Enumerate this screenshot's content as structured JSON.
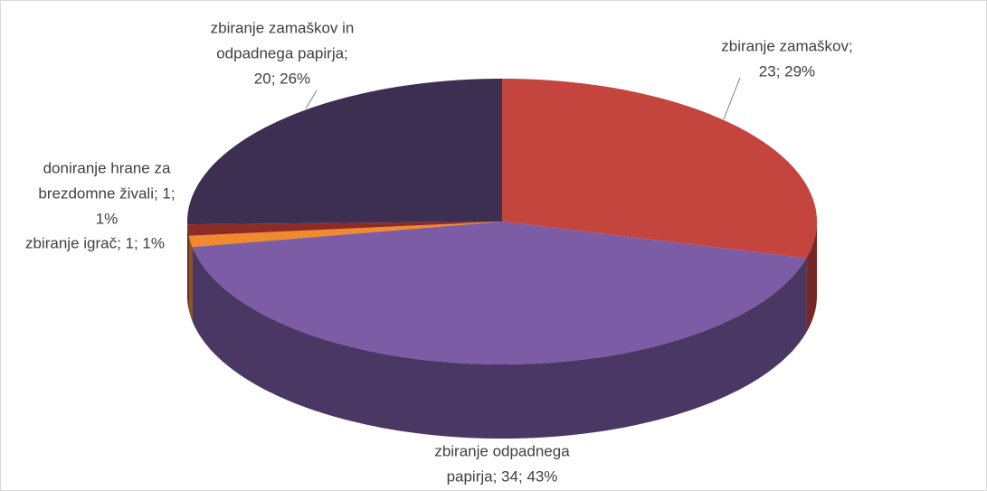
{
  "chart_data": {
    "type": "pie3d",
    "values": [
      23,
      34,
      1,
      1,
      20
    ],
    "value_labels": [
      [
        "zbiranje zamaškov;",
        "23; 29%"
      ],
      [
        "zbiranje odpadnega",
        "papirja; 34; 43%"
      ],
      [
        "zbiranje igrač; 1; 1%"
      ],
      [
        "doniranje hrane za",
        "brezdomne živali; 1;",
        "1%"
      ],
      [
        "zbiranje zamaškov in",
        "odpadnega papirja;",
        "20; 26%"
      ]
    ],
    "colors": [
      "#c4443e",
      "#7d5ca6",
      "#f08a2c",
      "#8e2b26",
      "#3d2f52"
    ]
  }
}
